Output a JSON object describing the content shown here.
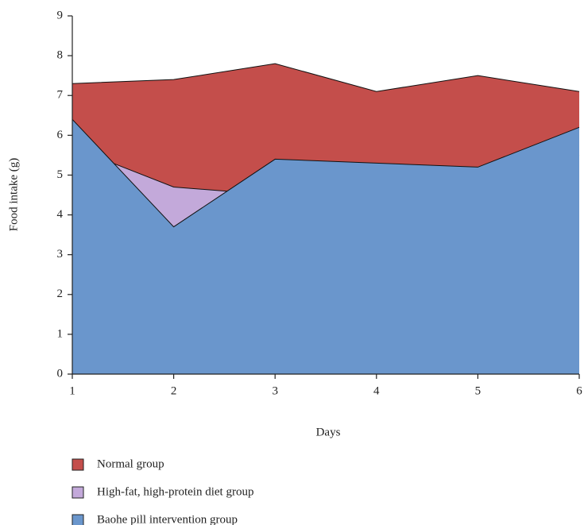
{
  "chart_data": {
    "type": "area",
    "x_label": "Days",
    "y_label": "Food intake (g)",
    "x": [
      1,
      2,
      3,
      4,
      5,
      6
    ],
    "xlim": [
      1,
      6
    ],
    "xticks": [
      1,
      2,
      3,
      4,
      5,
      6
    ],
    "ylim": [
      0,
      9
    ],
    "yticks": [
      0,
      1,
      2,
      3,
      4,
      5,
      6,
      7,
      8,
      9
    ],
    "series": [
      {
        "name": "Normal group",
        "color": "#c44e4b",
        "values": [
          7.3,
          7.4,
          7.8,
          7.1,
          7.5,
          7.1
        ]
      },
      {
        "name": "High-fat, high-protein diet group",
        "color": "#c3a9da",
        "values": [
          5.7,
          4.7,
          4.5,
          4.6,
          4.8,
          5.5
        ]
      },
      {
        "name": "Baohe pill intervention group",
        "color": "#6a96cc",
        "values": [
          6.4,
          3.7,
          5.4,
          5.3,
          5.2,
          6.2
        ]
      }
    ]
  }
}
